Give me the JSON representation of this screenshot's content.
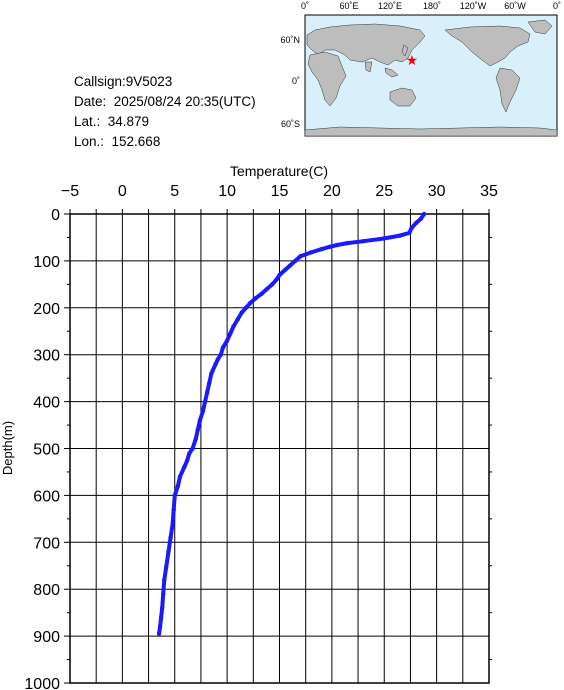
{
  "info": {
    "callsign": "Callsign:9V5023",
    "date": "Date:  2025/08/24 20:35(UTC)",
    "lat": "Lat.:  34.879",
    "lon": "Lon.:  152.668"
  },
  "map": {
    "top_labels": [
      "0˚",
      "60˚E",
      "120˚E",
      "180˚",
      "120˚W",
      "60˚W",
      "0˚"
    ],
    "left_labels": [
      "60˚N",
      "0˚",
      "60˚S"
    ],
    "station": {
      "lat": 34.879,
      "lon": 152.668
    },
    "colors": {
      "ocean": "#d9f0fb",
      "land": "#bdbdbd",
      "marker": "#ff0000"
    }
  },
  "chart_data": {
    "type": "line",
    "xlabel": "Temperature(C)",
    "ylabel": "Depth(m)",
    "xlim": [
      -5,
      35
    ],
    "ylim": [
      1000,
      0
    ],
    "x_ticks": [
      "−5",
      "0",
      "5",
      "10",
      "15",
      "20",
      "25",
      "30",
      "35"
    ],
    "y_ticks": [
      "0",
      "100",
      "200",
      "300",
      "400",
      "500",
      "600",
      "700",
      "800",
      "900",
      "1000"
    ],
    "grid": true,
    "line_color": "#1a1aff",
    "series": [
      {
        "x": [
          28.8,
          28.5,
          28.0,
          27.6,
          27.4,
          26.5,
          25.0,
          23.0,
          21.5,
          20.5,
          19.8,
          19.0,
          18.0,
          17.0,
          16.5,
          16.0,
          15.5,
          15.0,
          14.7,
          14.3,
          13.8,
          13.3,
          12.7,
          12.2,
          11.8,
          11.4,
          11.0,
          10.6,
          10.3,
          10.0,
          9.6,
          9.4,
          9.1,
          8.9,
          8.5,
          8.3,
          8.1,
          7.9,
          7.7,
          7.4,
          7.2,
          7.0,
          6.7,
          6.4,
          6.2,
          5.9,
          5.5,
          5.3,
          5.0,
          4.9,
          4.8,
          4.6,
          4.4,
          4.2,
          4.0,
          3.9,
          3.8,
          3.7,
          3.6,
          3.5
        ],
        "y": [
          0,
          10,
          20,
          30,
          40,
          46,
          52,
          58,
          62,
          66,
          70,
          75,
          82,
          90,
          100,
          110,
          120,
          130,
          140,
          150,
          160,
          170,
          180,
          190,
          200,
          210,
          225,
          240,
          255,
          270,
          285,
          300,
          310,
          320,
          340,
          360,
          380,
          400,
          420,
          440,
          460,
          480,
          500,
          510,
          525,
          540,
          560,
          580,
          600,
          630,
          660,
          690,
          720,
          750,
          780,
          810,
          840,
          860,
          880,
          895
        ]
      }
    ]
  }
}
